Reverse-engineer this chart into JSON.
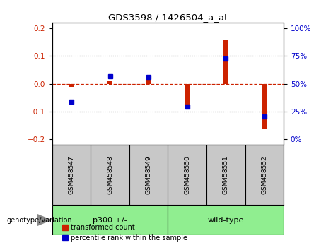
{
  "title": "GDS3598 / 1426504_a_at",
  "samples": [
    "GSM458547",
    "GSM458548",
    "GSM458549",
    "GSM458550",
    "GSM458551",
    "GSM458552"
  ],
  "group_labels": [
    "p300 +/-",
    "wild-type"
  ],
  "transformed_counts": [
    -0.012,
    0.01,
    0.03,
    -0.075,
    0.155,
    -0.16
  ],
  "percentile_ranks": [
    -0.065,
    0.028,
    0.025,
    -0.083,
    0.09,
    -0.118
  ],
  "ylim": [
    -0.22,
    0.22
  ],
  "yticks_left": [
    -0.2,
    -0.1,
    0.0,
    0.1,
    0.2
  ],
  "yticks_right": [
    0,
    25,
    50,
    75,
    100
  ],
  "red_color": "#CC2200",
  "blue_color": "#0000CC",
  "bar_width": 0.12,
  "marker_size": 5,
  "background_color": "#FFFFFF",
  "plot_bg_color": "#FFFFFF",
  "genotype_label": "genotype/variation",
  "legend_labels": [
    "transformed count",
    "percentile rank within the sample"
  ],
  "sample_bg_color": "#C8C8C8",
  "green_color": "#90EE90"
}
